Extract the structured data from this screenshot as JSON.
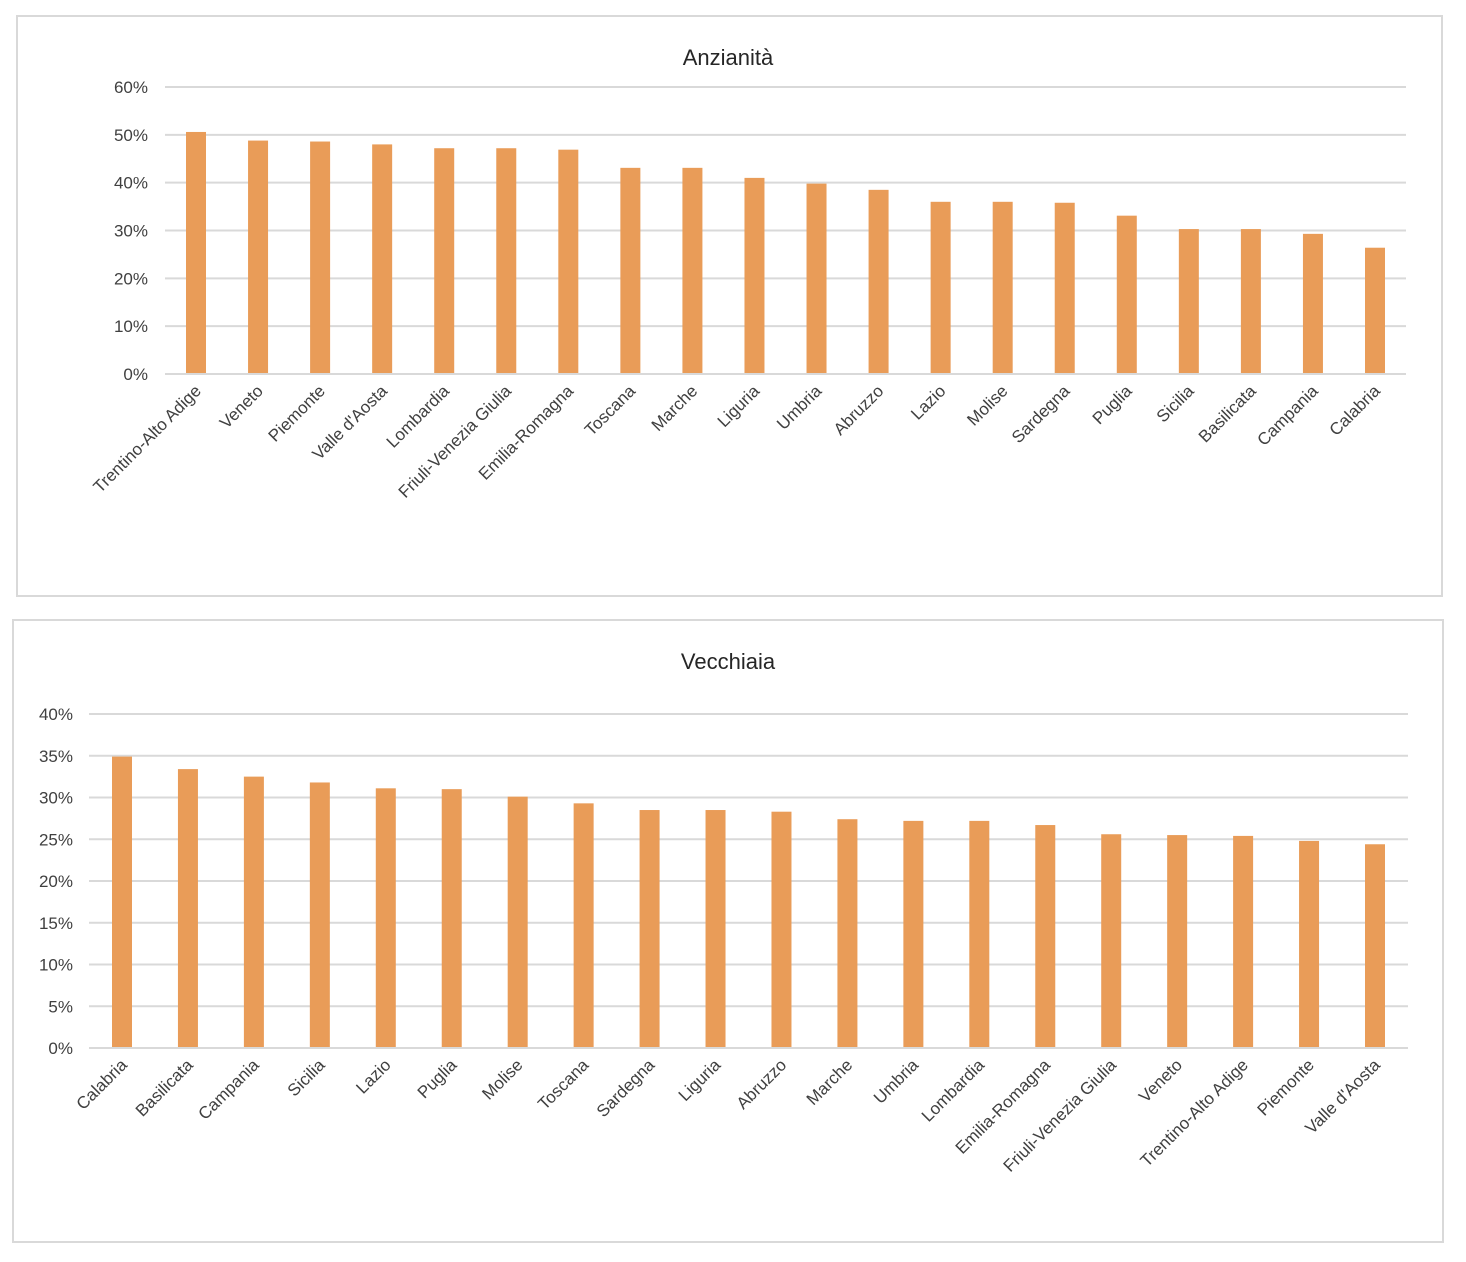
{
  "chart_data": [
    {
      "type": "bar",
      "title": "Anzianità",
      "xlabel": "",
      "ylabel": "",
      "ylim": [
        0,
        60
      ],
      "yticks": [
        0,
        10,
        20,
        30,
        40,
        50,
        60
      ],
      "ytick_labels": [
        "0%",
        "10%",
        "20%",
        "30%",
        "40%",
        "50%",
        "60%"
      ],
      "grid": true,
      "color": "#E99C58",
      "categories": [
        "Trentino-Alto Adige",
        "Veneto",
        "Piemonte",
        "Valle d'Aosta",
        "Lombardia",
        "Friuli-Venezia Giulia",
        "Emilia-Romagna",
        "Toscana",
        "Marche",
        "Liguria",
        "Umbria",
        "Abruzzo",
        "Lazio",
        "Molise",
        "Sardegna",
        "Puglia",
        "Sicilia",
        "Basilicata",
        "Campania",
        "Calabria"
      ],
      "values": [
        50.6,
        48.8,
        48.6,
        48.0,
        47.2,
        47.2,
        46.9,
        43.1,
        43.1,
        41.0,
        39.8,
        38.5,
        36.0,
        36.0,
        35.8,
        33.1,
        30.3,
        30.3,
        29.3,
        26.4
      ]
    },
    {
      "type": "bar",
      "title": "Vecchiaia",
      "xlabel": "",
      "ylabel": "",
      "ylim": [
        0,
        40
      ],
      "yticks": [
        0,
        5,
        10,
        15,
        20,
        25,
        30,
        35,
        40
      ],
      "ytick_labels": [
        "0%",
        "5%",
        "10%",
        "15%",
        "20%",
        "25%",
        "30%",
        "35%",
        "40%"
      ],
      "grid": true,
      "color": "#E99C58",
      "categories": [
        "Calabria",
        "Basilicata",
        "Campania",
        "Sicilia",
        "Lazio",
        "Puglia",
        "Molise",
        "Toscana",
        "Sardegna",
        "Liguria",
        "Abruzzo",
        "Marche",
        "Umbria",
        "Lombardia",
        "Emilia-Romagna",
        "Friuli-Venezia Giulia",
        "Veneto",
        "Trentino-Alto Adige",
        "Piemonte",
        "Valle d'Aosta"
      ],
      "values": [
        34.9,
        33.4,
        32.5,
        31.8,
        31.1,
        31.0,
        30.1,
        29.3,
        28.5,
        28.5,
        28.3,
        27.4,
        27.2,
        27.2,
        26.7,
        25.6,
        25.5,
        25.4,
        24.8,
        24.4
      ]
    }
  ]
}
